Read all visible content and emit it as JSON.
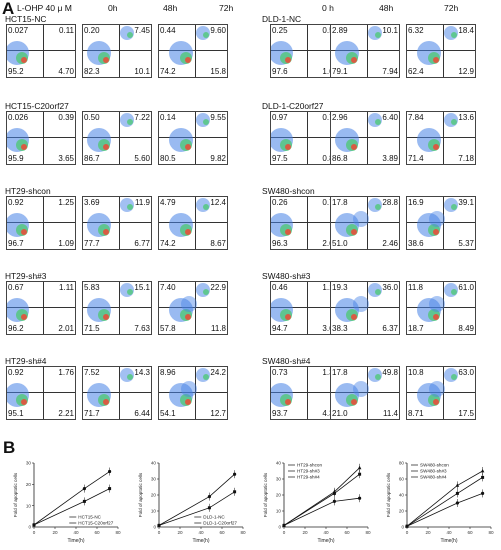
{
  "panel_a": {
    "letter": "A",
    "treatment": "L-OHP 40 μ M",
    "times": [
      "0h",
      "48h",
      "72h",
      "0 h",
      "48h",
      "72h"
    ],
    "rows": [
      {
        "left": {
          "label": "HCT15-NC",
          "plots": [
            [
              "0.027",
              "0.11",
              "95.2",
              "4.70"
            ],
            [
              "0.20",
              "7.45",
              "82.3",
              "10.1"
            ],
            [
              "0.44",
              "9.60",
              "74.2",
              "15.8"
            ]
          ]
        },
        "right": {
          "label": "DLD-1-NC",
          "plots": [
            [
              "0.25",
              "0.52",
              "97.6",
              "1.64"
            ],
            [
              "2.89",
              "10.1",
              "79.1",
              "7.94"
            ],
            [
              "6.32",
              "18.4",
              "62.4",
              "12.9"
            ]
          ]
        }
      },
      {
        "left": {
          "label": "HCT15-C20orf27",
          "plots": [
            [
              "0.026",
              "0.39",
              "95.9",
              "3.65"
            ],
            [
              "0.50",
              "7.22",
              "86.7",
              "5.60"
            ],
            [
              "0.14",
              "9.55",
              "80.5",
              "9.82"
            ]
          ]
        },
        "right": {
          "label": "DLD-1-C20orf27",
          "plots": [
            [
              "0.97",
              "0.72",
              "97.5",
              "0.84"
            ],
            [
              "2.96",
              "6.40",
              "86.8",
              "3.89"
            ],
            [
              "7.84",
              "13.6",
              "71.4",
              "7.18"
            ]
          ]
        }
      },
      {
        "left": {
          "label": "HT29-shcon",
          "plots": [
            [
              "0.92",
              "1.25",
              "96.7",
              "1.09"
            ],
            [
              "3.69",
              "11.9",
              "77.7",
              "6.77"
            ],
            [
              "4.79",
              "12.4",
              "74.2",
              "8.67"
            ]
          ]
        },
        "right": {
          "label": "SW480-shcon",
          "plots": [
            [
              "0.26",
              "0.78",
              "96.3",
              "2.69"
            ],
            [
              "17.8",
              "28.8",
              "51.0",
              "2.46"
            ],
            [
              "16.9",
              "39.1",
              "38.6",
              "5.37"
            ]
          ]
        }
      },
      {
        "left": {
          "label": "HT29-sh#3",
          "plots": [
            [
              "0.67",
              "1.11",
              "96.2",
              "2.01"
            ],
            [
              "5.83",
              "15.1",
              "71.5",
              "7.63"
            ],
            [
              "7.40",
              "22.9",
              "57.8",
              "11.8"
            ]
          ]
        },
        "right": {
          "label": "SW480-sh#3",
          "plots": [
            [
              "0.46",
              "1.19",
              "94.7",
              "3.60"
            ],
            [
              "19.3",
              "36.0",
              "38.3",
              "6.37"
            ],
            [
              "11.8",
              "61.0",
              "18.7",
              "8.49"
            ]
          ]
        }
      },
      {
        "left": {
          "label": "HT29-sh#4",
          "plots": [
            [
              "0.92",
              "1.76",
              "95.1",
              "2.21"
            ],
            [
              "7.52",
              "14.3",
              "71.7",
              "6.44"
            ],
            [
              "8.96",
              "24.2",
              "54.1",
              "12.7"
            ]
          ]
        },
        "right": {
          "label": "SW480-sh#4",
          "plots": [
            [
              "0.73",
              "1.30",
              "93.7",
              "4.30"
            ],
            [
              "17.8",
              "49.8",
              "21.0",
              "11.4"
            ],
            [
              "10.8",
              "63.0",
              "8.71",
              "17.5"
            ]
          ]
        }
      }
    ]
  },
  "panel_b": {
    "letter": "B",
    "ylabel": "Fold of apoptotic cells",
    "xlabel": "Time(h)"
  },
  "chart_data": [
    {
      "type": "line",
      "x": [
        0,
        48,
        72
      ],
      "xticks": [
        0,
        20,
        40,
        60,
        80
      ],
      "yticks": [
        0,
        10,
        20,
        30
      ],
      "ylim": [
        0,
        30
      ],
      "xlim": [
        0,
        80
      ],
      "legend": "bottom-right",
      "series": [
        {
          "name": "HCT15-NC",
          "values": [
            1,
            18,
            26
          ]
        },
        {
          "name": "HCT15-C20orf27",
          "values": [
            1,
            12,
            18
          ]
        }
      ]
    },
    {
      "type": "line",
      "x": [
        0,
        48,
        72
      ],
      "xticks": [
        0,
        20,
        40,
        60,
        80
      ],
      "yticks": [
        0,
        10,
        20,
        30,
        40
      ],
      "ylim": [
        0,
        40
      ],
      "xlim": [
        0,
        80
      ],
      "legend": "bottom-right",
      "series": [
        {
          "name": "DLD-1-NC",
          "values": [
            1,
            19,
            33
          ]
        },
        {
          "name": "DLD-1-C20orf27",
          "values": [
            1,
            12,
            22
          ]
        }
      ]
    },
    {
      "type": "line",
      "x": [
        0,
        48,
        72
      ],
      "xticks": [
        0,
        20,
        40,
        60,
        80
      ],
      "yticks": [
        0,
        10,
        20,
        30,
        40
      ],
      "ylim": [
        0,
        40
      ],
      "xlim": [
        0,
        80
      ],
      "legend": "top-left",
      "series": [
        {
          "name": "HT29-shcon",
          "values": [
            1,
            16,
            18
          ]
        },
        {
          "name": "HT29-sh#3",
          "values": [
            1,
            21,
            33
          ]
        },
        {
          "name": "HT29-sh#4",
          "values": [
            1,
            22,
            37
          ]
        }
      ]
    },
    {
      "type": "line",
      "x": [
        0,
        48,
        72
      ],
      "xticks": [
        0,
        20,
        40,
        60,
        80
      ],
      "yticks": [
        0,
        20,
        40,
        60,
        80
      ],
      "ylim": [
        0,
        80
      ],
      "xlim": [
        0,
        80
      ],
      "legend": "top-left",
      "series": [
        {
          "name": "SW480-shcon",
          "values": [
            1,
            30,
            42
          ]
        },
        {
          "name": "SW480-sh#3",
          "values": [
            1,
            42,
            62
          ]
        },
        {
          "name": "SW480-sh#4",
          "values": [
            1,
            52,
            70
          ]
        }
      ]
    }
  ]
}
